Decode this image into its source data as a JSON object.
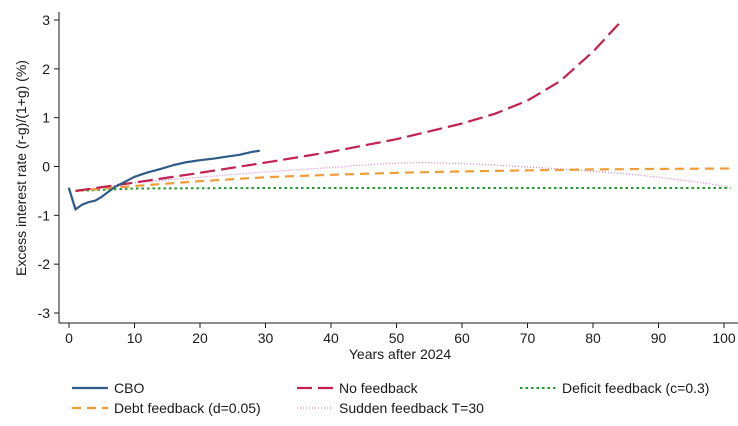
{
  "chart_data": {
    "type": "line",
    "title": "",
    "xlabel": "Years after 2024",
    "ylabel": "Excess interest rate (r-g)/(1+g) (%)",
    "xlim": [
      -1,
      102
    ],
    "ylim": [
      -3.15,
      3.15
    ],
    "xticks": [
      0,
      10,
      20,
      30,
      40,
      50,
      60,
      70,
      80,
      90,
      100
    ],
    "yticks": [
      -3,
      -2,
      -1,
      0,
      1,
      2,
      3
    ],
    "grid": false,
    "legend_position": "bottom",
    "series": [
      {
        "name": "CBO",
        "color": "#2e5b88",
        "dash": "solid",
        "x": [
          0,
          1,
          2,
          3,
          4,
          5,
          6,
          7,
          8,
          9,
          10,
          12,
          14,
          16,
          18,
          20,
          22,
          24,
          26,
          28,
          29
        ],
        "y": [
          -0.45,
          -0.88,
          -0.78,
          -0.73,
          -0.7,
          -0.62,
          -0.52,
          -0.42,
          -0.35,
          -0.28,
          -0.21,
          -0.12,
          -0.05,
          0.03,
          0.09,
          0.13,
          0.16,
          0.2,
          0.24,
          0.3,
          0.32
        ]
      },
      {
        "name": "No feedback",
        "color": "#c3214f",
        "dash": "longdash",
        "x": [
          1,
          10,
          20,
          30,
          40,
          50,
          60,
          65,
          70,
          75,
          80,
          84
        ],
        "y": [
          -0.5,
          -0.33,
          -0.13,
          0.08,
          0.3,
          0.56,
          0.88,
          1.08,
          1.35,
          1.75,
          2.35,
          2.93
        ]
      },
      {
        "name": "Deficit feedback (c=0.3)",
        "color": "#1e9a2b",
        "dash": "dotted",
        "x": [
          1,
          10,
          30,
          50,
          70,
          90,
          101
        ],
        "y": [
          -0.5,
          -0.45,
          -0.44,
          -0.44,
          -0.44,
          -0.44,
          -0.44
        ]
      },
      {
        "name": "Debt feedback (d=0.05)",
        "color": "#f29c38",
        "dash": "dash",
        "x": [
          1,
          10,
          20,
          30,
          40,
          50,
          60,
          70,
          80,
          90,
          101
        ],
        "y": [
          -0.5,
          -0.4,
          -0.3,
          -0.22,
          -0.17,
          -0.13,
          -0.1,
          -0.08,
          -0.06,
          -0.05,
          -0.04
        ]
      },
      {
        "name": "Sudden feedback T=30",
        "color": "#d67ad6",
        "dash": "fine-dotted",
        "x": [
          1,
          10,
          20,
          30,
          40,
          45,
          50,
          55,
          60,
          65,
          70,
          75,
          80,
          85,
          90,
          95,
          101
        ],
        "y": [
          -0.5,
          -0.33,
          -0.22,
          -0.11,
          -0.02,
          0.03,
          0.07,
          0.08,
          0.06,
          0.03,
          -0.01,
          -0.05,
          -0.1,
          -0.15,
          -0.22,
          -0.3,
          -0.42
        ]
      }
    ],
    "legend_layout": [
      {
        "series": "CBO",
        "column": 0,
        "row": 0
      },
      {
        "series": "No feedback",
        "column": 1,
        "row": 0
      },
      {
        "series": "Deficit feedback (c=0.3)",
        "column": 2,
        "row": 0
      },
      {
        "series": "Debt feedback (d=0.05)",
        "column": 0,
        "row": 1
      },
      {
        "series": "Sudden feedback T=30",
        "column": 1,
        "row": 1
      }
    ]
  }
}
